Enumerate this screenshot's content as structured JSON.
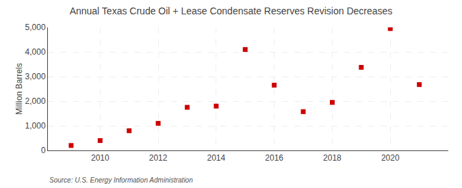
{
  "chart_data": {
    "type": "scatter",
    "title": "Annual Texas Crude Oil + Lease Condensate Reserves Revision Decreases",
    "ylabel": "Million Barrels",
    "annotations": [
      "Source: U.S. Energy Information Administration"
    ],
    "x": [
      2009,
      2010,
      2011,
      2012,
      2013,
      2014,
      2015,
      2016,
      2017,
      2018,
      2019,
      2020,
      2021
    ],
    "values": [
      200,
      400,
      800,
      1100,
      1750,
      1800,
      4100,
      2650,
      1575,
      1950,
      3375,
      4950,
      2675
    ],
    "color": "#cc0000",
    "marker": "square",
    "xlim": [
      2008.2,
      2022.0
    ],
    "xticks": [
      2010,
      2012,
      2014,
      2016,
      2018,
      2020
    ],
    "ylim": [
      0,
      5000
    ],
    "yticks": [
      0,
      {
        "value": 1000,
        "label": "1,000"
      },
      {
        "value": 2000,
        "label": "2,000"
      },
      {
        "value": 3000,
        "label": "3,000"
      },
      {
        "value": 4000,
        "label": "4,000"
      },
      {
        "value": 5000,
        "label": "5,000"
      }
    ],
    "grid": true
  }
}
